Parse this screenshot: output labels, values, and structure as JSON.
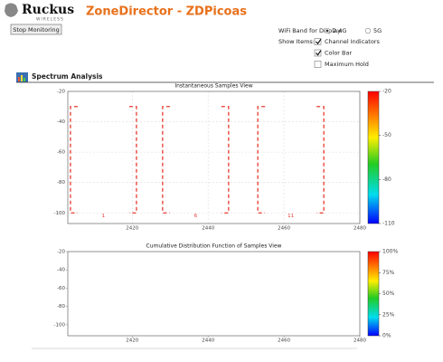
{
  "header": {
    "logo": "Ruckus",
    "logo_sub": "WIRELESS",
    "title": "ZoneDirector - ZDPicoas"
  },
  "controls": {
    "button": "Stop Monitoring",
    "band_label": "WiFi Band for Display:",
    "band_options": [
      {
        "label": "2.4G",
        "selected": true
      },
      {
        "label": "5G",
        "selected": false
      }
    ],
    "show_items_label": "Show Items:",
    "show_items": [
      {
        "label": "Channel Indicators",
        "checked": true
      },
      {
        "label": "Color Bar",
        "checked": true
      },
      {
        "label": "Maximum Hold",
        "checked": false
      }
    ]
  },
  "section": {
    "title": "Spectrum Analysis"
  },
  "chart_data": [
    {
      "type": "spectrum",
      "title": "Instantaneous Samples View",
      "xlim": [
        2403,
        2480
      ],
      "xticks": [
        2420,
        2440,
        2460,
        2480
      ],
      "ylim": [
        -107,
        -20
      ],
      "yticks": [
        -20,
        -40,
        -60,
        -80,
        -100
      ],
      "grid": true,
      "channels": {
        "color": "#e8392f",
        "top": -30,
        "bottom": -100,
        "items": [
          {
            "label": "1",
            "start": 2403.7,
            "end": 2421.1
          },
          {
            "label": "6",
            "start": 2428,
            "end": 2445.4
          },
          {
            "label": "11",
            "start": 2453.1,
            "end": 2470.5
          }
        ]
      },
      "colorbar": {
        "lim": [
          -110,
          -20
        ],
        "ticks": [
          -20,
          -50,
          -80,
          -110
        ]
      }
    },
    {
      "type": "cdf",
      "title": "Cumulative Distribution Function of Samples View",
      "xlim": [
        2403,
        2480
      ],
      "xticks": [
        2420,
        2440,
        2460,
        2480
      ],
      "ylim": [
        -112,
        -20
      ],
      "yticks": [
        -20,
        -40,
        -60,
        -80,
        -100
      ],
      "grid": false,
      "colorbar": {
        "lim": [
          0,
          100
        ],
        "ticks": [
          {
            "value": 100,
            "label": "100%"
          },
          {
            "value": 75,
            "label": "75%"
          },
          {
            "value": 50,
            "label": "50%"
          },
          {
            "value": 25,
            "label": "25%"
          },
          {
            "value": 0,
            "label": "0%"
          }
        ]
      }
    }
  ]
}
